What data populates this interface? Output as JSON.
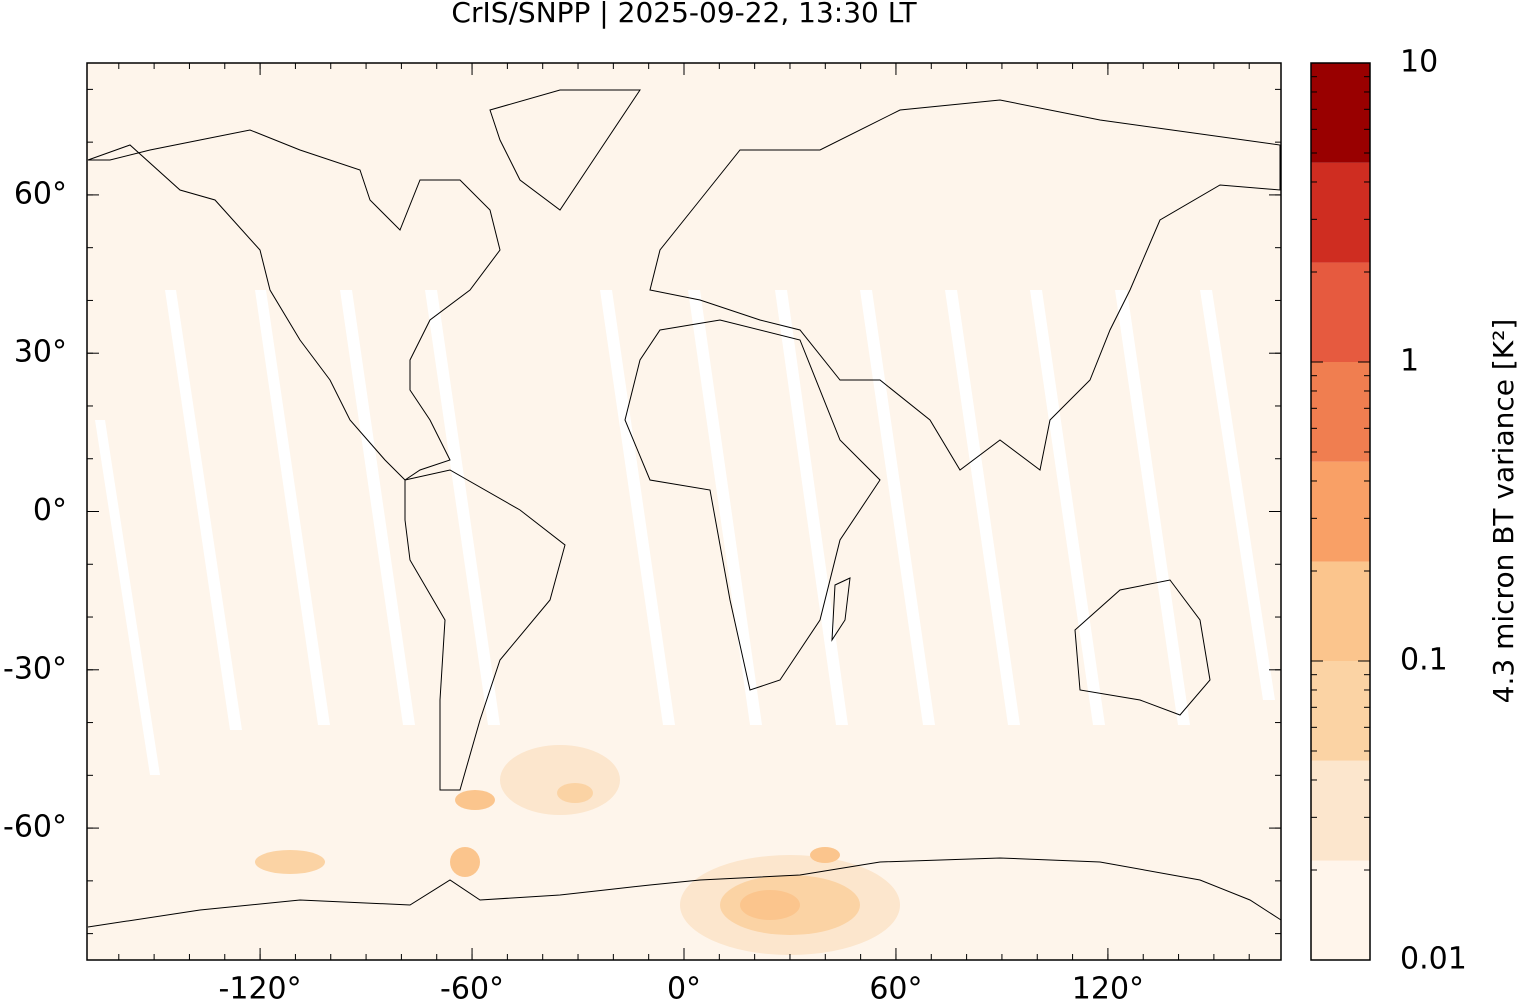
{
  "chart_data": {
    "type": "map",
    "title": "CrIS/SNPP | 2025-09-22, 13:30 LT",
    "xlim": [
      -169,
      169
    ],
    "ylim": [
      -85,
      85
    ],
    "xticks": [
      {
        "value": -120,
        "label": "-120°"
      },
      {
        "value": -60,
        "label": "-60°"
      },
      {
        "value": 0,
        "label": "0°"
      },
      {
        "value": 60,
        "label": "60°"
      },
      {
        "value": 120,
        "label": "120°"
      }
    ],
    "yticks": [
      {
        "value": -60,
        "label": "-60°"
      },
      {
        "value": -30,
        "label": "-30°"
      },
      {
        "value": 0,
        "label": "0°"
      },
      {
        "value": 30,
        "label": "30°"
      },
      {
        "value": 60,
        "label": "60°"
      }
    ],
    "colorbar": {
      "label": "4.3 micron BT variance [K²]",
      "log": true,
      "lim": [
        0.01,
        10
      ],
      "levels": [
        0.01,
        0.0215,
        0.0464,
        0.1,
        0.215,
        0.464,
        1,
        2.15,
        4.64,
        10
      ],
      "colors": [
        "#fff5eb",
        "#fce6cd",
        "#fbd3a4",
        "#fbc58d",
        "#f9a066",
        "#f07e50",
        "#e65a3f",
        "#cf2d21",
        "#990000"
      ],
      "ticks": [
        0.01,
        0.1,
        1,
        10
      ]
    }
  }
}
